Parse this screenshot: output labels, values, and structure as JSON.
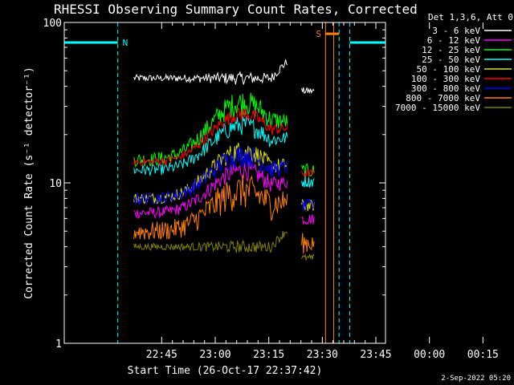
{
  "chart_data": {
    "type": "line",
    "title": "RHESSI Observing Summary Count Rates, Corrected",
    "xlabel": "Start Time (26-Oct-17 22:37:42)",
    "ylabel": "Corrected Count Rate (s⁻¹ detector⁻¹)",
    "yscale": "log",
    "xlim_minutes": [
      -20,
      70
    ],
    "ylim": [
      1,
      100
    ],
    "x_ticks": [
      "22:45",
      "23:00",
      "23:15",
      "23:30",
      "23:45",
      "00:00",
      "00:15"
    ],
    "y_ticks": [
      "1",
      "10",
      "100"
    ],
    "legend_header": "Det 1,3,6, Att 0",
    "legend_position": "top-right",
    "series": [
      {
        "name": "3 - 6 keV",
        "color": "#ffffff",
        "level_start": 45,
        "level_peak": 45,
        "level_end": 44,
        "noise": 0.05
      },
      {
        "name": "6 - 12 keV",
        "color": "#ff00ff",
        "level_start": 6.5,
        "level_peak": 12,
        "level_end": 7,
        "noise": 0.08
      },
      {
        "name": "12 - 25 keV",
        "color": "#00ff00",
        "level_start": 14,
        "level_peak": 32,
        "level_end": 14,
        "noise": 0.1
      },
      {
        "name": "25 - 50 keV",
        "color": "#00ffff",
        "level_start": 12,
        "level_peak": 23,
        "level_end": 12,
        "noise": 0.08
      },
      {
        "name": "50 - 100 keV",
        "color": "#e0e000",
        "level_start": 8,
        "level_peak": 16,
        "level_end": 8.5,
        "noise": 0.08
      },
      {
        "name": "100 - 300 keV",
        "color": "#ff0000",
        "level_start": 13.5,
        "level_peak": 27,
        "level_end": 13.5,
        "noise": 0.06
      },
      {
        "name": "300 - 800 keV",
        "color": "#0000ff",
        "level_start": 8,
        "level_peak": 15,
        "level_end": 8.5,
        "noise": 0.09
      },
      {
        "name": "800 - 7000 keV",
        "color": "#ff8000",
        "level_start": 5,
        "level_peak": 9,
        "level_end": 5,
        "noise": 0.14
      },
      {
        "name": "7000 - 15000 keV",
        "color": "#808000",
        "level_start": 4,
        "level_peak": 4,
        "level_end": 4,
        "noise": 0.05
      }
    ],
    "annotations": [
      {
        "label": "N",
        "color": "#00ffff",
        "bar_from_min": -20,
        "bar_to_min": -5,
        "y_value": 75
      },
      {
        "label": "S",
        "color": "#ff8000",
        "bar_from_min": 53.2,
        "bar_to_min": 57,
        "y_value": 85
      },
      {
        "label": "",
        "color": "#00ffff",
        "bar_from_min": 60,
        "bar_to_min": 73,
        "y_value": 75
      }
    ],
    "footer_date": "2-Sep-2022 05:20"
  }
}
